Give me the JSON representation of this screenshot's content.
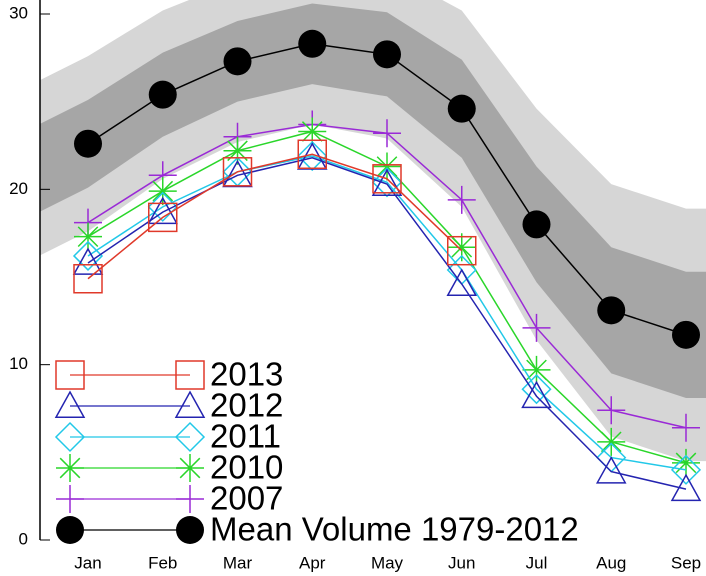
{
  "chart_data": {
    "type": "line",
    "categories": [
      "Jan",
      "Feb",
      "Mar",
      "Apr",
      "May",
      "Jun",
      "Jul",
      "Aug",
      "Sep"
    ],
    "ylim": [
      0,
      30
    ],
    "yticks": [
      0,
      10,
      20,
      30
    ],
    "legend": "lower left",
    "bands": [
      {
        "color": "#d6d6d6",
        "lower": [
          17.6,
          20.6,
          22.7,
          23.7,
          22.9,
          19.0,
          11.4,
          5.9,
          4.5
        ],
        "upper": [
          27.6,
          30.2,
          31.9,
          32.9,
          32.5,
          30.2,
          24.6,
          20.3,
          18.9
        ]
      },
      {
        "color": "#a6a6a6",
        "lower": [
          20.1,
          23.0,
          25.0,
          26.0,
          25.3,
          21.8,
          14.7,
          9.5,
          8.1
        ],
        "upper": [
          25.1,
          27.8,
          29.6,
          30.6,
          30.1,
          27.4,
          21.3,
          16.7,
          15.3
        ]
      }
    ],
    "series": [
      {
        "name": "2013",
        "color": "#e0392a",
        "marker": "square",
        "values": [
          14.9,
          18.4,
          21.0,
          22.0,
          20.6,
          16.5,
          null,
          null,
          null
        ]
      },
      {
        "name": "2012",
        "color": "#2424b0",
        "marker": "triangle",
        "values": [
          15.8,
          18.7,
          20.8,
          21.8,
          20.3,
          14.6,
          8.2,
          3.9,
          2.9
        ]
      },
      {
        "name": "2011",
        "color": "#22c8e8",
        "marker": "diamond",
        "values": [
          16.2,
          19.0,
          21.0,
          21.9,
          20.4,
          15.4,
          8.6,
          4.7,
          4.0
        ]
      },
      {
        "name": "2010",
        "color": "#2ad62a",
        "marker": "asterisk",
        "values": [
          17.3,
          19.9,
          22.2,
          23.3,
          21.3,
          16.7,
          9.7,
          5.6,
          4.4
        ]
      },
      {
        "name": "2007",
        "color": "#9a2ad6",
        "marker": "plus",
        "values": [
          18.1,
          20.8,
          23.0,
          23.7,
          23.2,
          19.4,
          12.1,
          7.4,
          6.4
        ]
      },
      {
        "name": "Mean Volume 1979-2012",
        "color": "#000000",
        "marker": "circle",
        "values": [
          22.6,
          25.4,
          27.3,
          28.3,
          27.7,
          24.6,
          18.0,
          13.1,
          11.7
        ]
      }
    ]
  }
}
